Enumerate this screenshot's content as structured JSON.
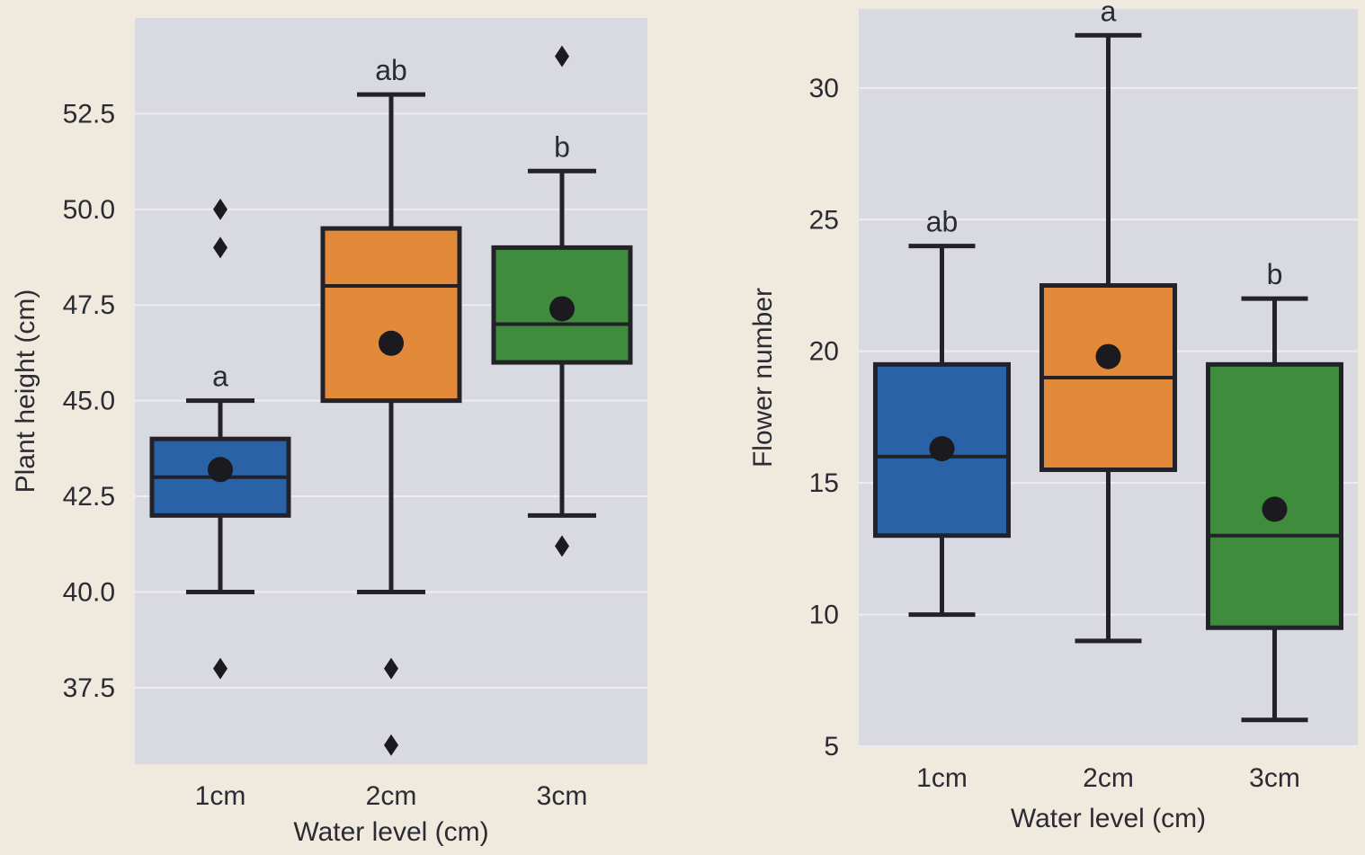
{
  "chart_data": [
    {
      "type": "box",
      "xlabel": "Water level (cm)",
      "ylabel": "Plant height (cm)",
      "categories": [
        "1cm",
        "2cm",
        "3cm"
      ],
      "yticks": [
        "37.5",
        "40.0",
        "42.5",
        "45.0",
        "47.5",
        "50.0",
        "52.5"
      ],
      "ylim": [
        35.5,
        55.0
      ],
      "boxes": [
        {
          "category": "1cm",
          "min": 40.0,
          "q1": 42.0,
          "median": 43.0,
          "q3": 44.0,
          "max": 45.0,
          "mean": 43.2,
          "outliers": [
            38.0,
            49.0,
            50.0
          ],
          "sig": "a"
        },
        {
          "category": "2cm",
          "min": 40.0,
          "q1": 45.0,
          "median": 48.0,
          "q3": 49.5,
          "max": 53.0,
          "mean": 46.5,
          "outliers": [
            38.0,
            36.0
          ],
          "sig": "ab"
        },
        {
          "category": "3cm",
          "min": 42.0,
          "q1": 46.0,
          "median": 47.0,
          "q3": 49.0,
          "max": 51.0,
          "mean": 47.4,
          "outliers": [
            41.2,
            54.0
          ],
          "sig": "b"
        }
      ]
    },
    {
      "type": "box",
      "xlabel": "Water level (cm)",
      "ylabel": "Flower number",
      "categories": [
        "1cm",
        "2cm",
        "3cm"
      ],
      "yticks": [
        "5",
        "10",
        "15",
        "20",
        "25",
        "30"
      ],
      "ylim": [
        5,
        33
      ],
      "boxes": [
        {
          "category": "1cm",
          "min": 10,
          "q1": 13,
          "median": 16,
          "q3": 19.5,
          "max": 24,
          "mean": 16.3,
          "outliers": [],
          "sig": "ab"
        },
        {
          "category": "2cm",
          "min": 9,
          "q1": 15.5,
          "median": 19,
          "q3": 22.5,
          "max": 32,
          "mean": 19.8,
          "outliers": [],
          "sig": "a"
        },
        {
          "category": "3cm",
          "min": 6,
          "q1": 9.5,
          "median": 13,
          "q3": 19.5,
          "max": 22,
          "mean": 14,
          "outliers": [],
          "sig": "b"
        }
      ]
    }
  ],
  "colors": {
    "1cm": "#2a62a8",
    "2cm": "#e2893a",
    "3cm": "#3f8c3c",
    "panel": "#d9d9e1",
    "ink": "#222228"
  }
}
